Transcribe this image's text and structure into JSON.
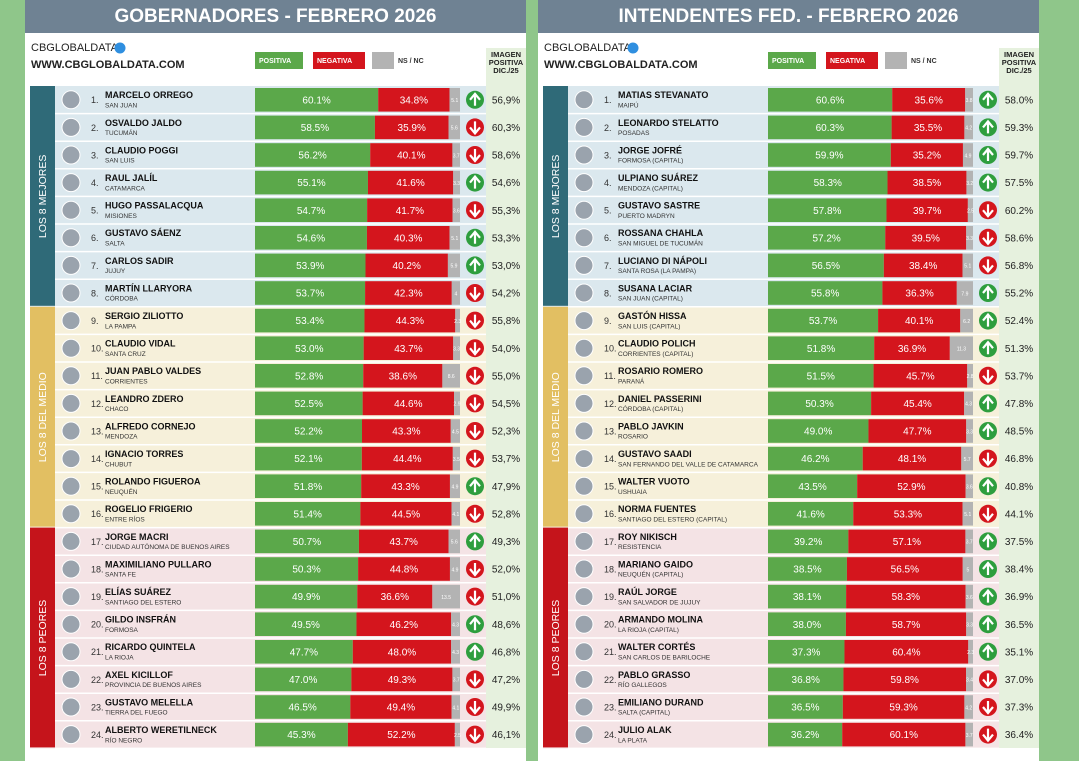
{
  "panels": [
    {
      "title": "GOBERNADORES - FEBRERO 2026",
      "brand": "CBGLOBALDATA",
      "website": "WWW.CBGLOBALDATA.COM",
      "legend": [
        {
          "label": "POSITIVA",
          "color": "#5ba84a"
        },
        {
          "label": "NEGATIVA",
          "color": "#d4151d"
        },
        {
          "label": "NS / NC",
          "color": "#b3b3b3"
        }
      ],
      "prev_header": [
        "IMAGEN",
        "POSITIVA",
        "DIC./25"
      ],
      "groups": [
        {
          "label": "LOS 8 MEJORES",
          "color": "#2f6a78",
          "bg": "#dbe8ee"
        },
        {
          "label": "LOS 8 DEL MEDIO",
          "color": "#e2bf62",
          "bg": "#f6f0da"
        },
        {
          "label": "LOS 8 PEORES",
          "color": "#c5141b",
          "bg": "#f4e3e5"
        }
      ],
      "rows": [
        {
          "rank": "1.",
          "name": "MARCELO ORREGO",
          "place": "SAN JUAN",
          "pos": 60.1,
          "pos_label": "60.1%",
          "neg": 34.8,
          "neg_label": "34.8%",
          "nsnc": 5.1,
          "trend": "up",
          "prev": "56,9%"
        },
        {
          "rank": "2.",
          "name": "OSVALDO JALDO",
          "place": "TUCUMÁN",
          "pos": 58.5,
          "pos_label": "58.5%",
          "neg": 35.9,
          "neg_label": "35.9%",
          "nsnc": 5.6,
          "trend": "down",
          "prev": "60,3%"
        },
        {
          "rank": "3.",
          "name": "CLAUDIO POGGI",
          "place": "SAN LUIS",
          "pos": 56.2,
          "pos_label": "56.2%",
          "neg": 40.1,
          "neg_label": "40.1%",
          "nsnc": 3.7,
          "trend": "down",
          "prev": "58,6%"
        },
        {
          "rank": "4.",
          "name": "RAUL JALÍL",
          "place": "CATAMARCA",
          "pos": 55.1,
          "pos_label": "55.1%",
          "neg": 41.6,
          "neg_label": "41.6%",
          "nsnc": 3.3,
          "trend": "up",
          "prev": "54,6%"
        },
        {
          "rank": "5.",
          "name": "HUGO PASSALACQUA",
          "place": "MISIONES",
          "pos": 54.7,
          "pos_label": "54.7%",
          "neg": 41.7,
          "neg_label": "41.7%",
          "nsnc": 3.6,
          "trend": "down",
          "prev": "55,3%"
        },
        {
          "rank": "6.",
          "name": "GUSTAVO SÁENZ",
          "place": "SALTA",
          "pos": 54.6,
          "pos_label": "54.6%",
          "neg": 40.3,
          "neg_label": "40.3%",
          "nsnc": 5.1,
          "trend": "up",
          "prev": "53,3%"
        },
        {
          "rank": "7.",
          "name": "CARLOS SADIR",
          "place": "JUJUY",
          "pos": 53.9,
          "pos_label": "53.9%",
          "neg": 40.2,
          "neg_label": "40.2%",
          "nsnc": 5.9,
          "trend": "up",
          "prev": "53,0%"
        },
        {
          "rank": "8.",
          "name": "MARTÍN LLARYORA",
          "place": "CÓRDOBA",
          "pos": 53.7,
          "pos_label": "53.7%",
          "neg": 42.3,
          "neg_label": "42.3%",
          "nsnc": 4.0,
          "trend": "down",
          "prev": "54,2%"
        },
        {
          "rank": "9.",
          "name": "SERGIO ZILIOTTO",
          "place": "LA PAMPA",
          "pos": 53.4,
          "pos_label": "53.4%",
          "neg": 44.3,
          "neg_label": "44.3%",
          "nsnc": 2.3,
          "trend": "down",
          "prev": "55,8%"
        },
        {
          "rank": "10.",
          "name": "CLAUDIO VIDAL",
          "place": "SANTA CRUZ",
          "pos": 53.0,
          "pos_label": "53.0%",
          "neg": 43.7,
          "neg_label": "43.7%",
          "nsnc": 3.3,
          "trend": "down",
          "prev": "54,0%"
        },
        {
          "rank": "11.",
          "name": "JUAN PABLO VALDES",
          "place": "CORRIENTES",
          "pos": 52.8,
          "pos_label": "52.8%",
          "neg": 38.6,
          "neg_label": "38.6%",
          "nsnc": 8.6,
          "trend": "down",
          "prev": "55,0%"
        },
        {
          "rank": "12.",
          "name": "LEANDRO ZDERO",
          "place": "CHACO",
          "pos": 52.5,
          "pos_label": "52.5%",
          "neg": 44.6,
          "neg_label": "44.6%",
          "nsnc": 2.9,
          "trend": "down",
          "prev": "54,5%"
        },
        {
          "rank": "13.",
          "name": "ALFREDO CORNEJO",
          "place": "MENDOZA",
          "pos": 52.2,
          "pos_label": "52.2%",
          "neg": 43.3,
          "neg_label": "43.3%",
          "nsnc": 4.5,
          "trend": "down",
          "prev": "52,3%"
        },
        {
          "rank": "14.",
          "name": "IGNACIO TORRES",
          "place": "CHUBUT",
          "pos": 52.1,
          "pos_label": "52.1%",
          "neg": 44.4,
          "neg_label": "44.4%",
          "nsnc": 3.5,
          "trend": "down",
          "prev": "53,7%"
        },
        {
          "rank": "15.",
          "name": "ROLANDO FIGUEROA",
          "place": "NEUQUÉN",
          "pos": 51.8,
          "pos_label": "51.8%",
          "neg": 43.3,
          "neg_label": "43.3%",
          "nsnc": 4.9,
          "trend": "up",
          "prev": "47,9%"
        },
        {
          "rank": "16.",
          "name": "ROGELIO FRIGERIO",
          "place": "ENTRE RÍOS",
          "pos": 51.4,
          "pos_label": "51.4%",
          "neg": 44.5,
          "neg_label": "44.5%",
          "nsnc": 4.1,
          "trend": "down",
          "prev": "52,8%"
        },
        {
          "rank": "17.",
          "name": "JORGE MACRI",
          "place": "CIUDAD AUTÓNOMA DE BUENOS AIRES",
          "pos": 50.7,
          "pos_label": "50.7%",
          "neg": 43.7,
          "neg_label": "43.7%",
          "nsnc": 5.6,
          "trend": "up",
          "prev": "49,3%"
        },
        {
          "rank": "18.",
          "name": "MAXIMILIANO PULLARO",
          "place": "SANTA FE",
          "pos": 50.3,
          "pos_label": "50.3%",
          "neg": 44.8,
          "neg_label": "44.8%",
          "nsnc": 4.9,
          "trend": "down",
          "prev": "52,0%"
        },
        {
          "rank": "19.",
          "name": "ELÍAS SUÁREZ",
          "place": "SANTIAGO DEL ESTERO",
          "pos": 49.9,
          "pos_label": "49.9%",
          "neg": 36.6,
          "neg_label": "36.6%",
          "nsnc": 13.5,
          "trend": "down",
          "prev": "51,0%"
        },
        {
          "rank": "20.",
          "name": "GILDO INSFRÁN",
          "place": "FORMOSA",
          "pos": 49.5,
          "pos_label": "49.5%",
          "neg": 46.2,
          "neg_label": "46.2%",
          "nsnc": 4.3,
          "trend": "up",
          "prev": "48,6%"
        },
        {
          "rank": "21.",
          "name": "RICARDO QUINTELA",
          "place": "LA RIOJA",
          "pos": 47.7,
          "pos_label": "47.7%",
          "neg": 48.0,
          "neg_label": "48.0%",
          "nsnc": 4.3,
          "trend": "up",
          "prev": "46,8%"
        },
        {
          "rank": "22.",
          "name": "AXEL KICILLOF",
          "place": "PROVINCIA DE BUENOS AIRES",
          "pos": 47.0,
          "pos_label": "47.0%",
          "neg": 49.3,
          "neg_label": "49.3%",
          "nsnc": 3.7,
          "trend": "down",
          "prev": "47,2%"
        },
        {
          "rank": "23.",
          "name": "GUSTAVO MELELLA",
          "place": "TIERRA DEL FUEGO",
          "pos": 46.5,
          "pos_label": "46.5%",
          "neg": 49.4,
          "neg_label": "49.4%",
          "nsnc": 4.1,
          "trend": "down",
          "prev": "49,9%"
        },
        {
          "rank": "24.",
          "name": "ALBERTO WERETILNECK",
          "place": "RÍO NEGRO",
          "pos": 45.3,
          "pos_label": "45.3%",
          "neg": 52.2,
          "neg_label": "52.2%",
          "nsnc": 2.5,
          "trend": "down",
          "prev": "46,1%"
        }
      ]
    },
    {
      "title": "INTENDENTES FED. - FEBRERO 2026",
      "brand": "CBGLOBALDATA",
      "website": "WWW.CBGLOBALDATA.COM",
      "legend": [
        {
          "label": "POSITIVA",
          "color": "#5ba84a"
        },
        {
          "label": "NEGATIVA",
          "color": "#d4151d"
        },
        {
          "label": "NS / NC",
          "color": "#b3b3b3"
        }
      ],
      "prev_header": [
        "IMAGEN",
        "POSITIVA",
        "DIC./25"
      ],
      "groups": [
        {
          "label": "LOS 8 MEJORES",
          "color": "#2f6a78",
          "bg": "#dbe8ee"
        },
        {
          "label": "LOS 8 DEL MEDIO",
          "color": "#e2bf62",
          "bg": "#f6f0da"
        },
        {
          "label": "LOS 8 PEORES",
          "color": "#c5141b",
          "bg": "#f4e3e5"
        }
      ],
      "rows": [
        {
          "rank": "1.",
          "name": "MATIAS STEVANATO",
          "place": "MAIPÚ",
          "pos": 60.6,
          "pos_label": "60.6%",
          "neg": 35.6,
          "neg_label": "35.6%",
          "nsnc": 3.8,
          "trend": "up",
          "prev": "58.0%"
        },
        {
          "rank": "2.",
          "name": "LEONARDO STELATTO",
          "place": "POSADAS",
          "pos": 60.3,
          "pos_label": "60.3%",
          "neg": 35.5,
          "neg_label": "35.5%",
          "nsnc": 4.2,
          "trend": "up",
          "prev": "59.3%"
        },
        {
          "rank": "3.",
          "name": "JORGE JOFRÉ",
          "place": "FORMOSA (CAPITAL)",
          "pos": 59.9,
          "pos_label": "59.9%",
          "neg": 35.2,
          "neg_label": "35.2%",
          "nsnc": 4.9,
          "trend": "up",
          "prev": "59.7%"
        },
        {
          "rank": "4.",
          "name": "ULPIANO SUÁREZ",
          "place": "MENDOZA (CAPITAL)",
          "pos": 58.3,
          "pos_label": "58.3%",
          "neg": 38.5,
          "neg_label": "38.5%",
          "nsnc": 3.2,
          "trend": "up",
          "prev": "57.5%"
        },
        {
          "rank": "5.",
          "name": "GUSTAVO SASTRE",
          "place": "PUERTO MADRYN",
          "pos": 57.8,
          "pos_label": "57.8%",
          "neg": 39.7,
          "neg_label": "39.7%",
          "nsnc": 2.5,
          "trend": "down",
          "prev": "60.2%"
        },
        {
          "rank": "6.",
          "name": "ROSSANA CHAHLA",
          "place": "SAN MIGUEL DE TUCUMÁN",
          "pos": 57.2,
          "pos_label": "57.2%",
          "neg": 39.5,
          "neg_label": "39.5%",
          "nsnc": 3.3,
          "trend": "down",
          "prev": "58.6%"
        },
        {
          "rank": "7.",
          "name": "LUCIANO DI NÁPOLI",
          "place": "SANTA ROSA (LA PAMPA)",
          "pos": 56.5,
          "pos_label": "56.5%",
          "neg": 38.4,
          "neg_label": "38.4%",
          "nsnc": 5.1,
          "trend": "down",
          "prev": "56.8%"
        },
        {
          "rank": "8.",
          "name": "SUSANA LACIAR",
          "place": "SAN JUAN (CAPITAL)",
          "pos": 55.8,
          "pos_label": "55.8%",
          "neg": 36.3,
          "neg_label": "36.3%",
          "nsnc": 7.9,
          "trend": "up",
          "prev": "55.2%"
        },
        {
          "rank": "9.",
          "name": "GASTÓN HISSA",
          "place": "SAN LUIS (CAPITAL)",
          "pos": 53.7,
          "pos_label": "53.7%",
          "neg": 40.1,
          "neg_label": "40.1%",
          "nsnc": 6.2,
          "trend": "up",
          "prev": "52.4%"
        },
        {
          "rank": "10.",
          "name": "CLAUDIO POLICH",
          "place": "CORRIENTES (CAPITAL)",
          "pos": 51.8,
          "pos_label": "51.8%",
          "neg": 36.9,
          "neg_label": "36.9%",
          "nsnc": 11.3,
          "trend": "up",
          "prev": "51.3%"
        },
        {
          "rank": "11.",
          "name": "ROSARIO ROMERO",
          "place": "PARANÁ",
          "pos": 51.5,
          "pos_label": "51.5%",
          "neg": 45.7,
          "neg_label": "45.7%",
          "nsnc": 2.8,
          "trend": "down",
          "prev": "53.7%"
        },
        {
          "rank": "12.",
          "name": "DANIEL PASSERINI",
          "place": "CÓRDOBA (CAPITAL)",
          "pos": 50.3,
          "pos_label": "50.3%",
          "neg": 45.4,
          "neg_label": "45.4%",
          "nsnc": 4.3,
          "trend": "up",
          "prev": "47.8%"
        },
        {
          "rank": "13.",
          "name": "PABLO JAVKIN",
          "place": "ROSARIO",
          "pos": 49.0,
          "pos_label": "49.0%",
          "neg": 47.7,
          "neg_label": "47.7%",
          "nsnc": 3.3,
          "trend": "up",
          "prev": "48.5%"
        },
        {
          "rank": "14.",
          "name": "GUSTAVO SAADI",
          "place": "SAN FERNANDO DEL VALLE DE CATAMARCA",
          "pos": 46.2,
          "pos_label": "46.2%",
          "neg": 48.1,
          "neg_label": "48.1%",
          "nsnc": 5.7,
          "trend": "down",
          "prev": "46.8%"
        },
        {
          "rank": "15.",
          "name": "WALTER VUOTO",
          "place": "USHUAIA",
          "pos": 43.5,
          "pos_label": "43.5%",
          "neg": 52.9,
          "neg_label": "52.9%",
          "nsnc": 3.6,
          "trend": "up",
          "prev": "40.8%"
        },
        {
          "rank": "16.",
          "name": "NORMA FUENTES",
          "place": "SANTIAGO DEL ESTERO (CAPITAL)",
          "pos": 41.6,
          "pos_label": "41.6%",
          "neg": 53.3,
          "neg_label": "53.3%",
          "nsnc": 5.1,
          "trend": "down",
          "prev": "44.1%"
        },
        {
          "rank": "17.",
          "name": "ROY NIKISCH",
          "place": "RESISTENCIA",
          "pos": 39.2,
          "pos_label": "39.2%",
          "neg": 57.1,
          "neg_label": "57.1%",
          "nsnc": 3.7,
          "trend": "up",
          "prev": "37.5%"
        },
        {
          "rank": "18.",
          "name": "MARIANO GAIDO",
          "place": "NEUQUÉN (CAPITAL)",
          "pos": 38.5,
          "pos_label": "38.5%",
          "neg": 56.5,
          "neg_label": "56.5%",
          "nsnc": 5.0,
          "trend": "up",
          "prev": "38.4%"
        },
        {
          "rank": "19.",
          "name": "RAÚL JORGE",
          "place": "SAN SALVADOR DE JUJUY",
          "pos": 38.1,
          "pos_label": "38.1%",
          "neg": 58.3,
          "neg_label": "58.3%",
          "nsnc": 3.6,
          "trend": "up",
          "prev": "36.9%"
        },
        {
          "rank": "20.",
          "name": "ARMANDO MOLINA",
          "place": "LA RIOJA (CAPITAL)",
          "pos": 38.0,
          "pos_label": "38.0%",
          "neg": 58.7,
          "neg_label": "58.7%",
          "nsnc": 3.3,
          "trend": "up",
          "prev": "36.5%"
        },
        {
          "rank": "21.",
          "name": "WALTER CORTÉS",
          "place": "SAN CARLOS DE BARILOCHE",
          "pos": 37.3,
          "pos_label": "37.3%",
          "neg": 60.4,
          "neg_label": "60.4%",
          "nsnc": 2.3,
          "trend": "up",
          "prev": "35.1%"
        },
        {
          "rank": "22.",
          "name": "PABLO GRASSO",
          "place": "RÍO GALLEGOS",
          "pos": 36.8,
          "pos_label": "36.8%",
          "neg": 59.8,
          "neg_label": "59.8%",
          "nsnc": 3.4,
          "trend": "down",
          "prev": "37.0%"
        },
        {
          "rank": "23.",
          "name": "EMILIANO DURAND",
          "place": "SALTA (CAPITAL)",
          "pos": 36.5,
          "pos_label": "36.5%",
          "neg": 59.3,
          "neg_label": "59.3%",
          "nsnc": 4.2,
          "trend": "down",
          "prev": "37.3%"
        },
        {
          "rank": "24.",
          "name": "JULIO ALAK",
          "place": "LA PLATA",
          "pos": 36.2,
          "pos_label": "36.2%",
          "neg": 60.1,
          "neg_label": "60.1%",
          "nsnc": 3.7,
          "trend": "down",
          "prev": "36.4%"
        }
      ]
    }
  ]
}
